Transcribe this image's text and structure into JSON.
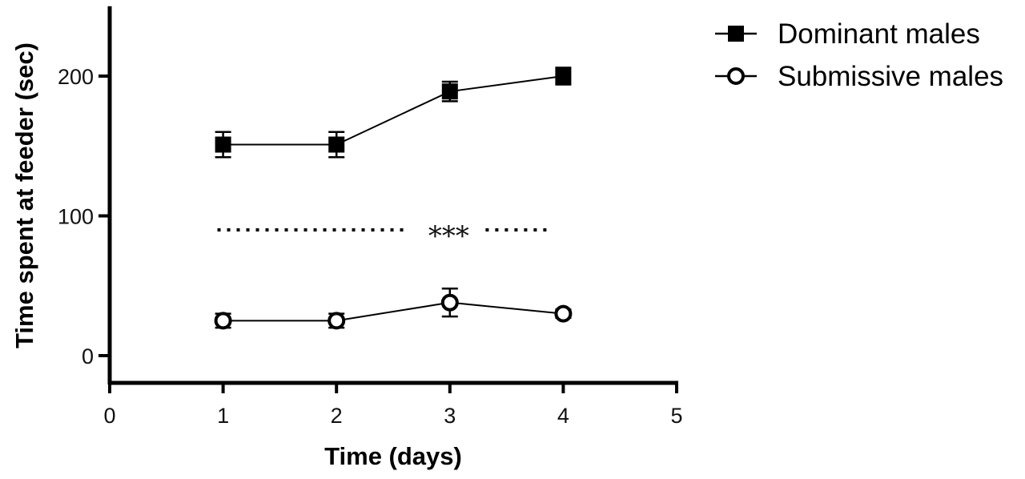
{
  "chart_data": {
    "type": "line",
    "title": "",
    "xlabel": "Time (days)",
    "ylabel": "Time spent at feeder (sec)",
    "xlim": [
      0,
      5
    ],
    "ylim": [
      -20,
      250
    ],
    "x_ticks": [
      "0",
      "1",
      "2",
      "3",
      "4",
      "5"
    ],
    "y_ticks": [
      "0",
      "100",
      "200"
    ],
    "y_tick_values": [
      0,
      100,
      200
    ],
    "x_tick_values": [
      0,
      1,
      2,
      3,
      4,
      5
    ],
    "grid": false,
    "legend_position": "top-right",
    "x": [
      1,
      2,
      3,
      4
    ],
    "series": [
      {
        "name": "Dominant males",
        "marker": "filled-square",
        "values": [
          151,
          151,
          189,
          200
        ],
        "errors": [
          9,
          9,
          7,
          6
        ]
      },
      {
        "name": "Submissive males",
        "marker": "open-circle",
        "values": [
          25,
          25,
          38,
          30
        ],
        "errors": [
          5,
          5,
          10,
          3
        ]
      }
    ],
    "annotation": {
      "text": "***",
      "line": "dotted",
      "y": 90,
      "x_start": 0.95,
      "x_end": 3.9,
      "text_x": 2.99
    },
    "colors": {
      "line": "#000000",
      "background": "#ffffff"
    }
  }
}
